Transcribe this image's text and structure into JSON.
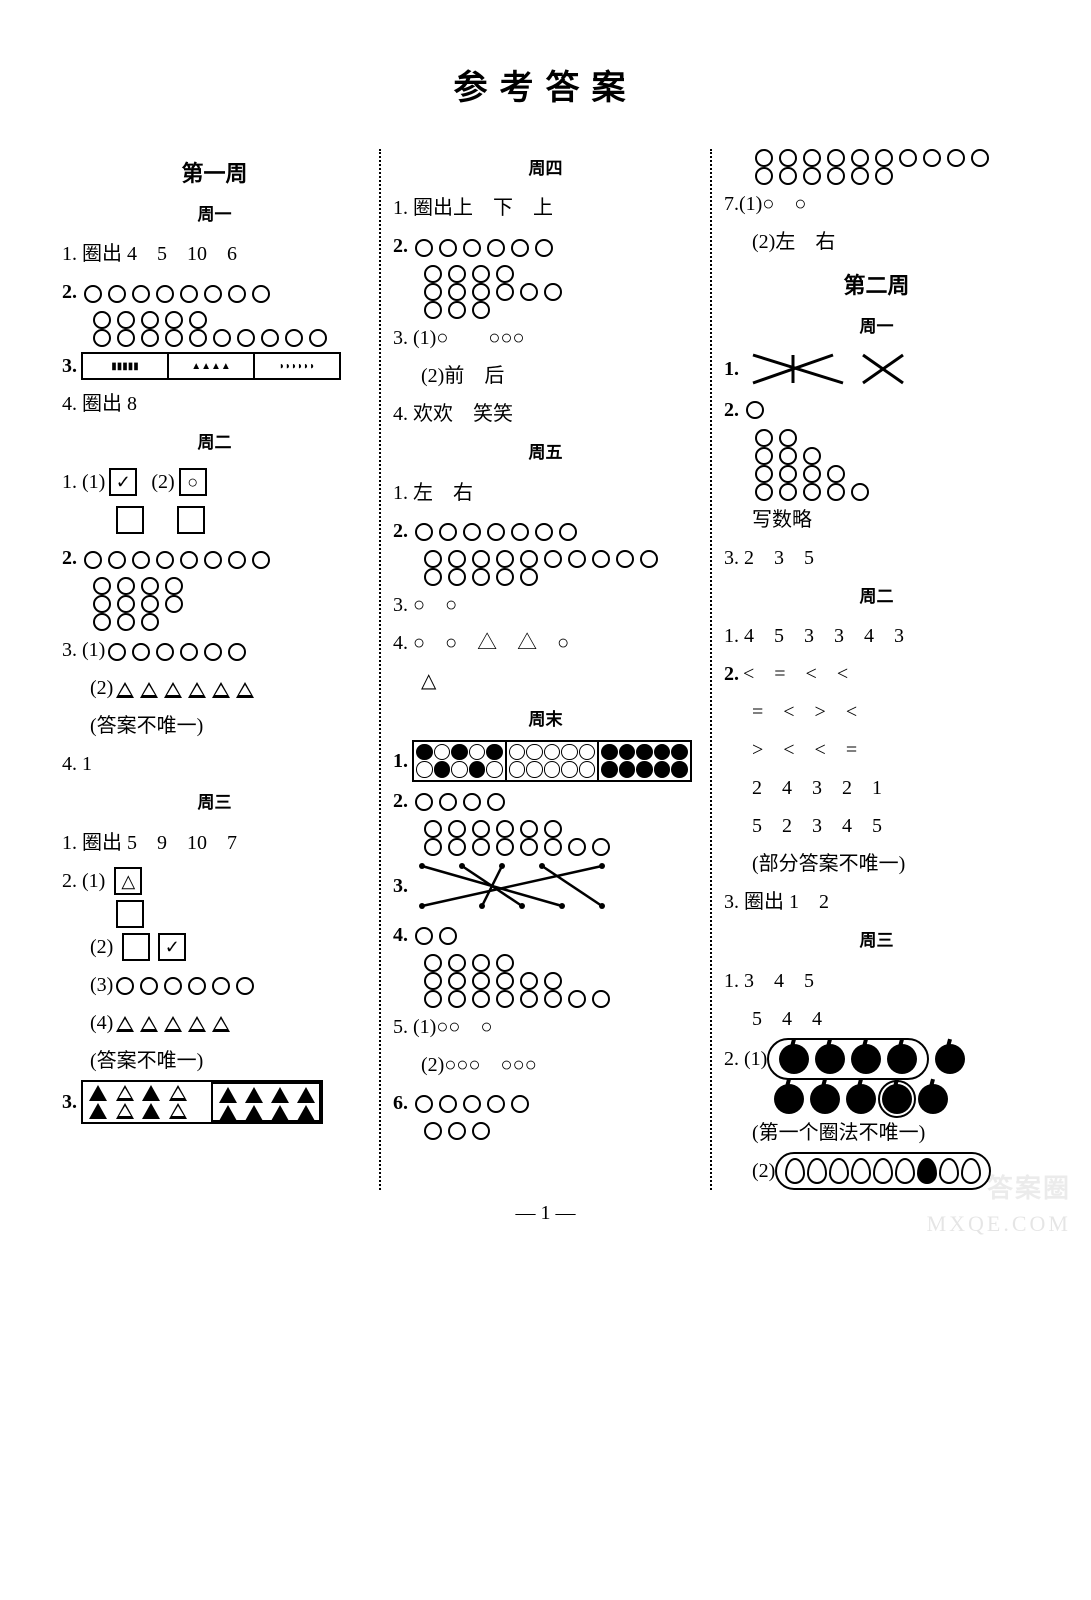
{
  "title": "参考答案",
  "page_number": "— 1 —",
  "watermarks": {
    "a": "答案圈",
    "b": "MXQE.COM"
  },
  "col1": {
    "week1": "第一周",
    "day1": "周一",
    "q1": "1. 圈出 4　5　10　6",
    "q2": "2.",
    "q2a_circles": 8,
    "q2b_circles": 5,
    "q2c_circles": 10,
    "q3": "3.",
    "q4": "4. 圈出 8",
    "day2": "周二",
    "d2q1": "1. (1)",
    "d2q1b": "(2)",
    "d2q2": "2.",
    "d2q2a": 8,
    "d2q2b": 4,
    "d2q2c": 4,
    "d2q2d": 3,
    "d2q3a": "3. (1)",
    "d2q3a_c": 6,
    "d2q3b": "(2)",
    "d2q3b_t": 6,
    "d2q3note": "(答案不唯一)",
    "d2q4": "4. 1",
    "day3": "周三",
    "d3q1": "1. 圈出 5　9　10　7",
    "d3q2a": "2. (1)",
    "d3q2b": "(2)",
    "d3q2c": "(3)",
    "d3q2c_c": 6,
    "d3q2d": "(4)",
    "d3q2d_t": 5,
    "d3note": "(答案不唯一)",
    "d3q3": "3."
  },
  "col2": {
    "day4": "周四",
    "d4q1": "1. 圈出上　下　上",
    "d4q2": "2.",
    "d4q2a": 6,
    "d4q2b": 4,
    "d4q2c": 6,
    "d4q2d": 3,
    "d4q3a": "3. (1)○　　○○○",
    "d4q3b": "(2)前　后",
    "d4q4": "4. 欢欢　笑笑",
    "day5": "周五",
    "d5q1": "1. 左　右",
    "d5q2": "2.",
    "d5q2a": 7,
    "d5q2b": 10,
    "d5q2c": 5,
    "d5q3": "3. ○　○",
    "d5q4": "4. ○　○　△　△　○",
    "d5q4b": "△",
    "day6": "周末",
    "d6q1": "1.",
    "d6q2": "2.",
    "d6q2a": 4,
    "d6q2b": 6,
    "d6q2c": 8,
    "d6q3": "3.",
    "d6q4": "4.",
    "d6q4a": 2,
    "d6q4b": 4,
    "d6q4c": 6,
    "d6q4d": 8,
    "d6q5a": "5. (1)○○　○",
    "d6q5b": "(2)○○○　○○○",
    "d6q6": "6.",
    "d6q6a": 5,
    "d6q6b": 3
  },
  "col3": {
    "top1": 10,
    "top2": 6,
    "q7a": "7.(1)○　○",
    "q7b": "(2)左　右",
    "week2": "第二周",
    "day1": "周一",
    "w2d1q1": "1.",
    "w2d1q2": "2.",
    "w2d1q2_rows": [
      1,
      2,
      3,
      4,
      5
    ],
    "w2d1q2_note": "写数略",
    "w2d1q3": "3. 2　3　5",
    "day2": "周二",
    "w2d2q1": "1. 4　5　3　3　4　3",
    "w2d2q2": "2.",
    "w2d2q2_r1": "<　=　<　<",
    "w2d2q2_r2": "=　<　>　<",
    "w2d2q2_r3": ">　<　<　=",
    "w2d2q2_r4": "2　4　3　2　1",
    "w2d2q2_r5": "5　2　3　4　5",
    "w2d2q2_note": "(部分答案不唯一)",
    "w2d2q3": "3. 圈出 1　2",
    "day3": "周三",
    "w2d3q1a": "1. 3　4　5",
    "w2d3q1b": "5　4　4",
    "w2d3q2": "2. (1)",
    "w2d3q2_note": "(第一个圈法不唯一)",
    "w2d3q2b": "(2)"
  }
}
